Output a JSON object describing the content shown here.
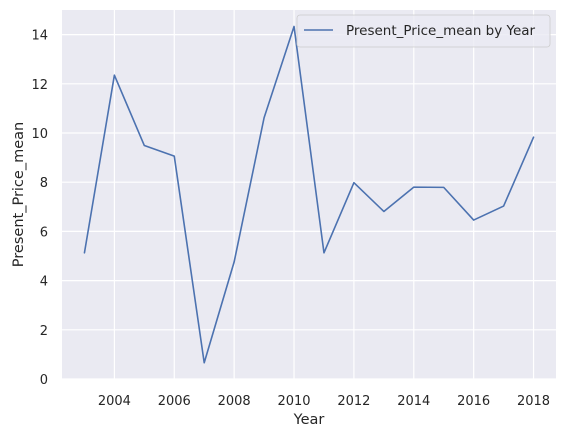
{
  "chart_data": {
    "type": "line",
    "xlabel": "Year",
    "ylabel": "Present_Price_mean",
    "xlim": [
      2002.25,
      2018.75
    ],
    "ylim": [
      0,
      15
    ],
    "xticks": [
      2004,
      2006,
      2008,
      2010,
      2012,
      2014,
      2016,
      2018
    ],
    "yticks": [
      0,
      2,
      4,
      6,
      8,
      10,
      12,
      14
    ],
    "grid": true,
    "legend_position": "top-right",
    "series": [
      {
        "name": "Present_Price_mean by Year",
        "color": "#4c72b0",
        "x": [
          2003,
          2004,
          2005,
          2006,
          2007,
          2008,
          2009,
          2010,
          2011,
          2012,
          2013,
          2014,
          2015,
          2016,
          2017,
          2018
        ],
        "y": [
          5.13,
          12.35,
          9.49,
          9.06,
          0.66,
          4.76,
          10.62,
          14.33,
          5.13,
          7.98,
          6.81,
          7.8,
          7.79,
          6.46,
          7.03,
          9.83
        ]
      }
    ]
  }
}
